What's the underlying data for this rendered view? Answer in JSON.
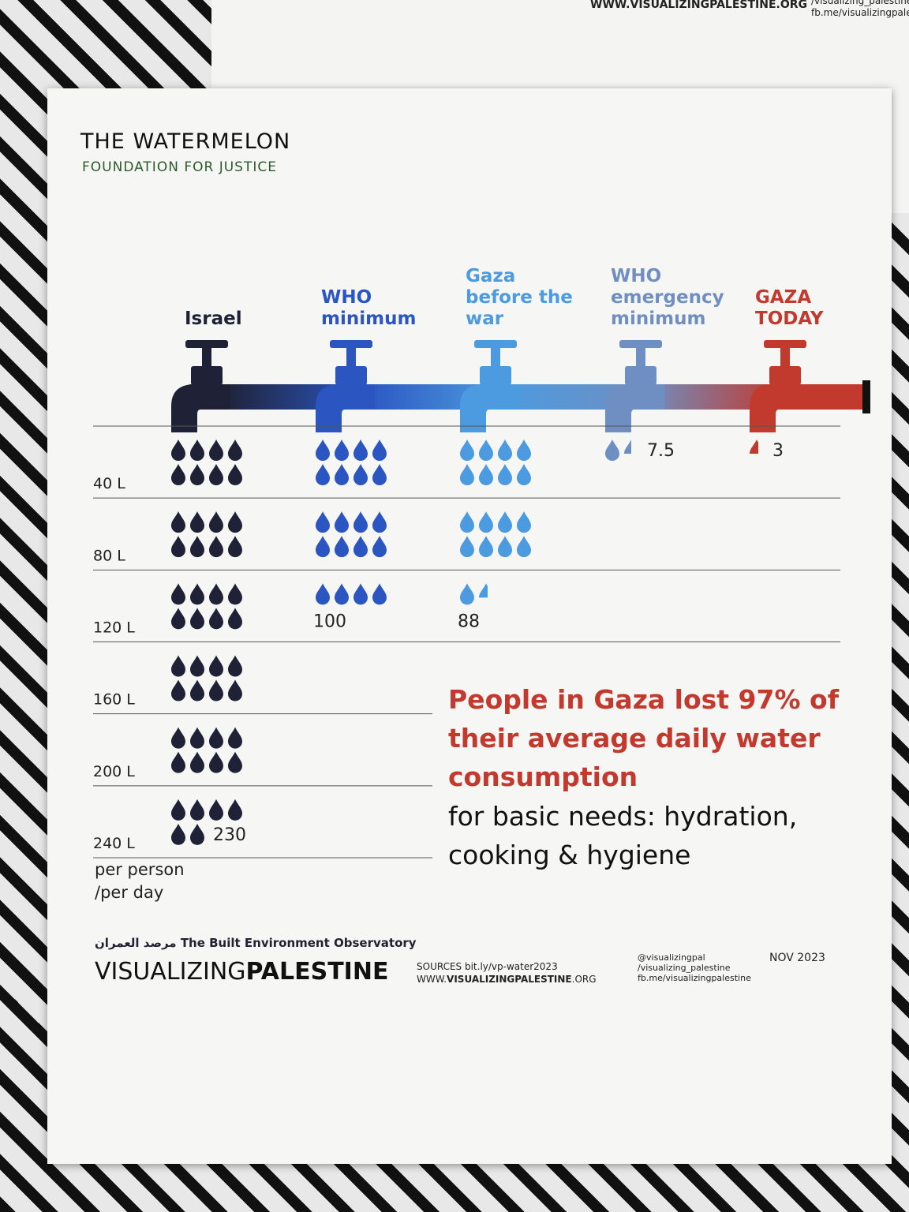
{
  "header": {
    "org_line1": "THE WATERMELON",
    "org_line2": "FOUNDATION FOR JUSTICE"
  },
  "back_card": {
    "site": "WWW.VISUALIZINGPALESTINE.ORG",
    "social1": "/visualizing_palestine",
    "social2": "fb.me/visualizingpalest"
  },
  "chart_data": {
    "type": "pictogram",
    "categories": [
      "Israel",
      "WHO minimum",
      "Gaza before the war",
      "WHO emergency minimum",
      "GAZA TODAY"
    ],
    "values": [
      230,
      100,
      88,
      7.5,
      3
    ],
    "colors": [
      "#1f2236",
      "#2b55c0",
      "#4c9be0",
      "#6f8fc2",
      "#c23a2e"
    ],
    "ylim": [
      0,
      240
    ],
    "yticks": [
      {
        "value": 40,
        "label": "40 L"
      },
      {
        "value": 80,
        "label": "80 L"
      },
      {
        "value": 120,
        "label": "120 L"
      },
      {
        "value": 160,
        "label": "160 L"
      },
      {
        "value": 200,
        "label": "200 L"
      },
      {
        "value": 240,
        "label": "240 L"
      }
    ],
    "y_label": "per person /per day"
  },
  "headline": {
    "highlight": "People in Gaza lost 97% of their average daily water consumption",
    "rest": "for basic needs: hydration, cooking & hygiene"
  },
  "footer": {
    "arabic": "مرصد العمران",
    "observatory": "The Built Environment Observatory",
    "brand_light": "VISUALIZING",
    "brand_bold": "PALESTINE",
    "sources": "SOURCES bit.ly/vp-water2023",
    "site_pre": "WWW.",
    "site_bold": "VISUALIZINGPALESTINE",
    "site_post": ".ORG",
    "twitter": "@visualizingpal",
    "instagram": "/visualizing_palestine",
    "facebook": "fb.me/visualizingpalestine",
    "date": "NOV 2023"
  }
}
